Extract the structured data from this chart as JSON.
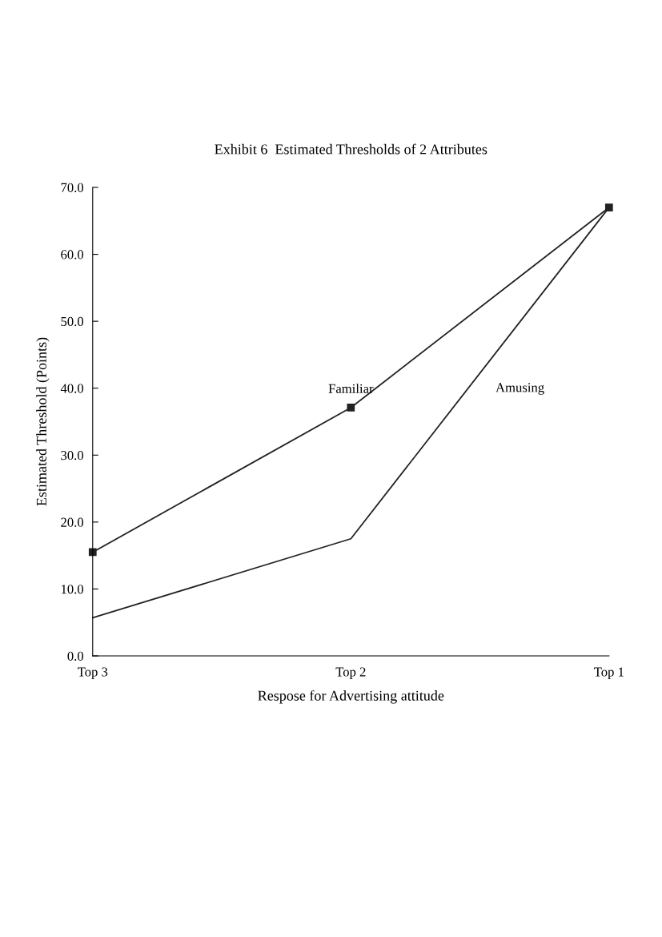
{
  "chart_data": {
    "type": "line",
    "title": "Exhibit 6  Estimated Thresholds of 2 Attributes",
    "xlabel": "Respose for Advertising attitude",
    "ylabel": "Estimated Threshold (Points)",
    "categories": [
      "Top 3",
      "Top 2",
      "Top 1"
    ],
    "series": [
      {
        "name": "Familiar",
        "color": "#222222",
        "marker": "square",
        "values": [
          15.5,
          37.1,
          67.0
        ]
      },
      {
        "name": "Amusing",
        "color": "#222222",
        "marker": "none",
        "values": [
          5.7,
          17.5,
          67.0
        ]
      }
    ],
    "ylim": [
      0,
      70
    ],
    "yticks": [
      {
        "value": 0,
        "label": "0.0"
      },
      {
        "value": 10,
        "label": "10.0"
      },
      {
        "value": 20,
        "label": "20.0"
      },
      {
        "value": 30,
        "label": "30.0"
      },
      {
        "value": 40,
        "label": "40.0"
      },
      {
        "value": 50,
        "label": "50.0"
      },
      {
        "value": 60,
        "label": "60.0"
      },
      {
        "value": 70,
        "label": "70.0"
      }
    ],
    "grid": false,
    "legend": false,
    "line_style": "solid"
  }
}
